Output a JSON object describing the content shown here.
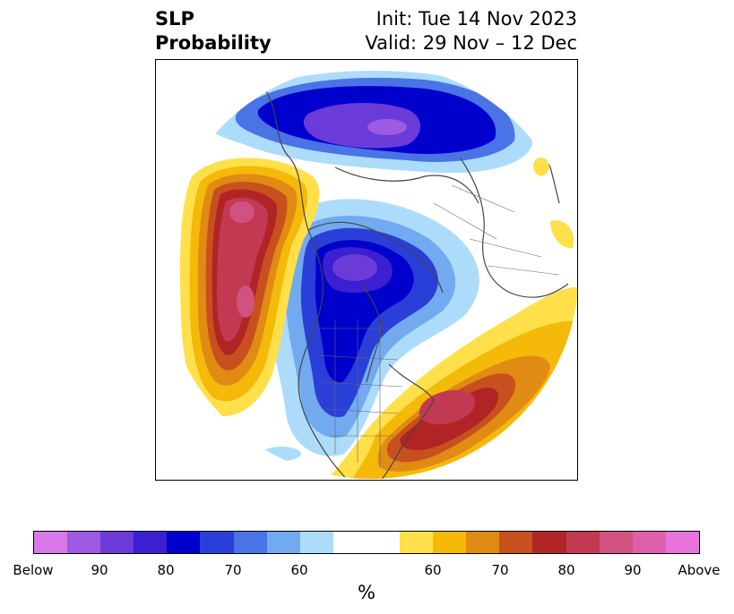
{
  "header": {
    "title_line1": "SLP",
    "title_line2": "Probability",
    "init_text": "Init: Tue 14 Nov 2023",
    "valid_text": "Valid: 29 Nov – 12 Dec"
  },
  "colorbar": {
    "unit": "%",
    "below_colors": [
      "#d978e8",
      "#9e5ae3",
      "#6b3bd8",
      "#3b1fd1",
      "#0000cc",
      "#2a3fd8",
      "#4a73e6",
      "#72aaf0",
      "#acdcfa"
    ],
    "neutral_color": "#ffffff",
    "above_colors": [
      "#ffe04a",
      "#f5b90a",
      "#e08b14",
      "#c8501e",
      "#b12426",
      "#c23a52",
      "#cf5280",
      "#de60aa",
      "#e873db"
    ],
    "tick_labels": [
      "Below",
      "90",
      "80",
      "70",
      "60",
      "60",
      "70",
      "80",
      "90",
      "Above"
    ]
  },
  "map": {
    "regions": [
      {
        "name": "below-normal-arctic",
        "category": "below",
        "level": "80-90"
      },
      {
        "name": "below-normal-central-north",
        "category": "below",
        "level": "80-90"
      },
      {
        "name": "above-normal-north-pacific",
        "category": "above",
        "level": "80-90"
      },
      {
        "name": "above-normal-western-atlantic",
        "category": "above",
        "level": "80-90"
      }
    ]
  }
}
